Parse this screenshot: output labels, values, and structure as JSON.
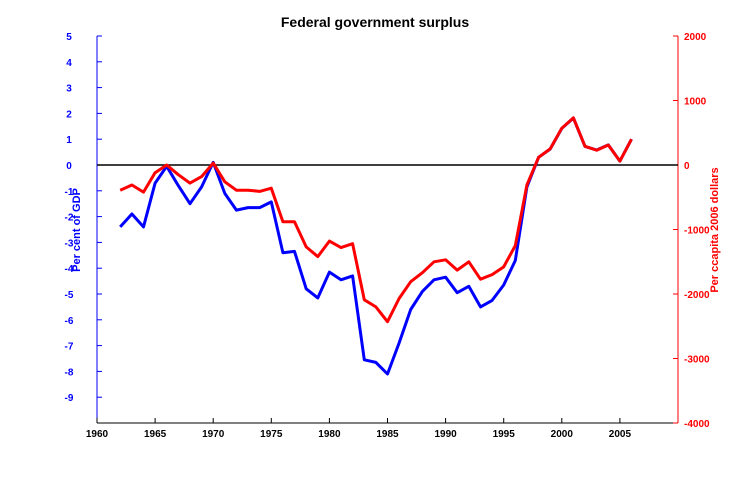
{
  "chart_data": {
    "type": "line",
    "title": "Federal government surplus",
    "xlabel": "",
    "ylabel_left": "Per cent of GDP",
    "ylabel_right": "Per ccapita 2006 dollars",
    "xlim": [
      1960,
      2010
    ],
    "ylim_left": [
      -10,
      5
    ],
    "ylim_right": [
      -4000,
      2000
    ],
    "x_ticks": [
      1960,
      1965,
      1970,
      1975,
      1980,
      1985,
      1990,
      1995,
      2000,
      2005
    ],
    "y_ticks_left": [
      5,
      4,
      3,
      2,
      1,
      0,
      -1,
      -2,
      -3,
      -4,
      -5,
      -6,
      -7,
      -8,
      -9
    ],
    "y_ticks_right": [
      2000,
      1000,
      0,
      -1000,
      -2000,
      -3000,
      -4000
    ],
    "grid": false,
    "zero_line": true,
    "colors": {
      "left_series": "#0000ff",
      "right_series": "#ff0000",
      "zero_line": "#000000"
    },
    "x": [
      1962,
      1963,
      1964,
      1965,
      1966,
      1967,
      1968,
      1969,
      1970,
      1971,
      1972,
      1973,
      1974,
      1975,
      1976,
      1977,
      1978,
      1979,
      1980,
      1981,
      1982,
      1983,
      1984,
      1985,
      1986,
      1987,
      1988,
      1989,
      1990,
      1991,
      1992,
      1993,
      1994,
      1995,
      1996,
      1997,
      1998,
      1999,
      2000,
      2001,
      2002,
      2003,
      2004,
      2005,
      2006
    ],
    "series": [
      {
        "axis": "left",
        "color": "#0000ff",
        "values": [
          -2.4,
          -1.9,
          -2.4,
          -0.7,
          -0.05,
          -0.8,
          -1.5,
          -0.85,
          0.1,
          -1.1,
          -1.75,
          -1.65,
          -1.65,
          -1.43,
          -3.4,
          -3.35,
          -4.8,
          -5.15,
          -4.15,
          -4.45,
          -4.3,
          -7.55,
          -7.65,
          -8.1,
          -6.9,
          -5.6,
          -4.9,
          -4.45,
          -4.35,
          -4.95,
          -4.7,
          -5.5,
          -5.25,
          -4.65,
          -3.7,
          -0.85,
          0.3,
          0.62,
          1.42,
          1.82,
          0.72,
          0.58,
          0.78,
          0.15,
          1.0
        ]
      },
      {
        "axis": "right",
        "color": "#ff0000",
        "values": [
          -390,
          -310,
          -420,
          -120,
          0,
          -150,
          -280,
          -180,
          30,
          -260,
          -390,
          -390,
          -410,
          -360,
          -880,
          -880,
          -1270,
          -1420,
          -1180,
          -1280,
          -1220,
          -2090,
          -2200,
          -2430,
          -2070,
          -1810,
          -1670,
          -1500,
          -1470,
          -1630,
          -1500,
          -1770,
          -1700,
          -1580,
          -1250,
          -310,
          120,
          250,
          570,
          730,
          290,
          230,
          310,
          60,
          400
        ]
      }
    ]
  }
}
